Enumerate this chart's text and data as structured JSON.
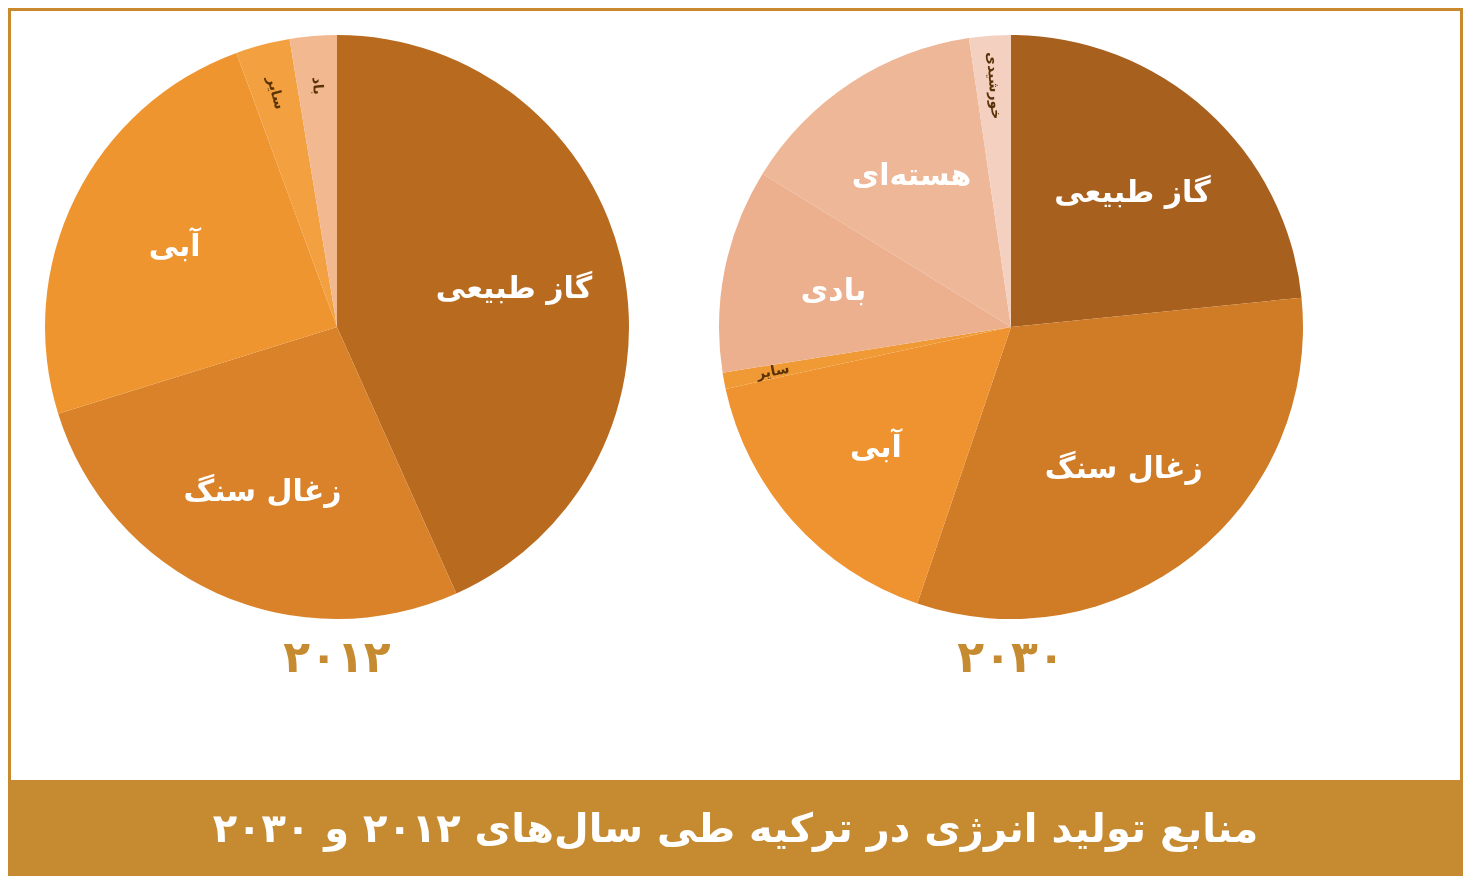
{
  "chart_data": [
    {
      "type": "pie",
      "title": "۲۰۱۲",
      "categories": [
        "گاز طبیعی",
        "زغال سنگ",
        "آبی",
        "سایر",
        "باد"
      ],
      "values": [
        43.3,
        26.9,
        24.2,
        3.0,
        2.6
      ],
      "colors": [
        "#b86a1f",
        "#d9822a",
        "#ef9530",
        "#f2a040",
        "#f2b890"
      ],
      "annotations": [
        "منابع تولید انرژی در ترکیه طی سال‌های ۲۰۱۲ و ۲۰۳۰"
      ]
    },
    {
      "type": "pie",
      "title": "۲۰۳۰",
      "categories": [
        "گاز طبیعی",
        "زغال سنگ",
        "آبی",
        "سایر",
        "بادی",
        "هسته‌ای",
        "خورشیدی"
      ],
      "values": [
        23.4,
        31.8,
        16.4,
        0.9,
        11.3,
        13.9,
        2.3
      ],
      "colors": [
        "#a8601f",
        "#d07b25",
        "#ee9330",
        "#f09a35",
        "#edb08f",
        "#eeb898",
        "#f3d0c0"
      ]
    }
  ]
}
